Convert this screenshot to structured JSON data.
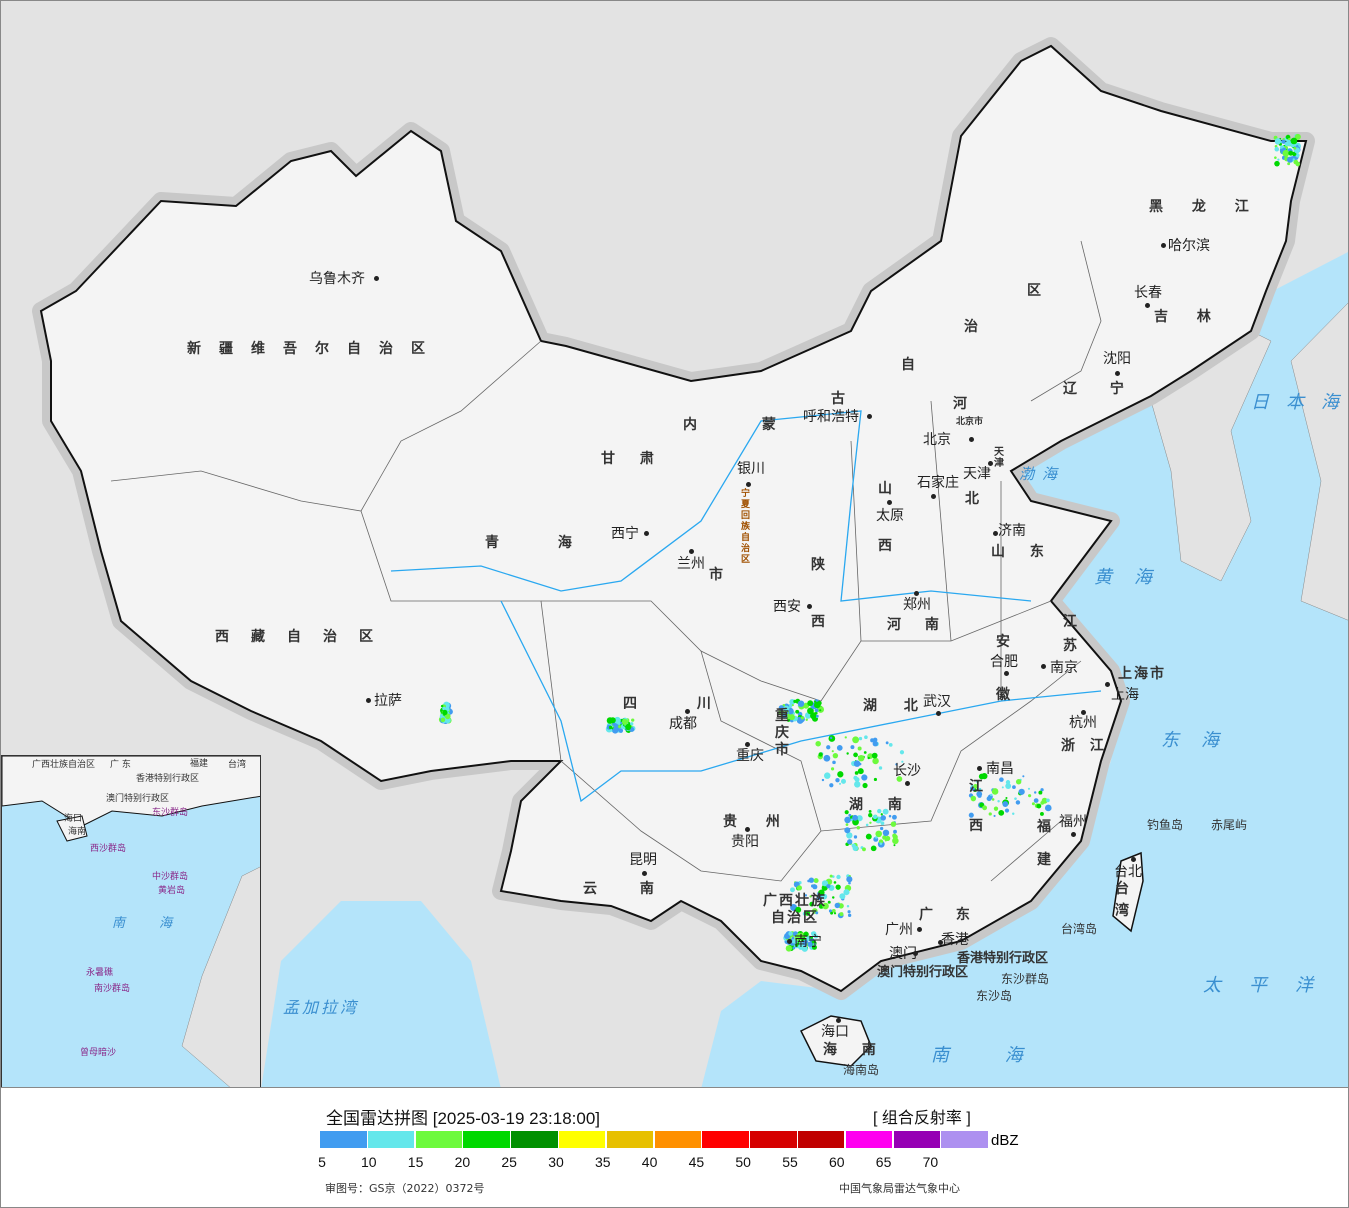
{
  "legend": {
    "title": "全国雷达拼图 [2025-03-19 23:18:00]",
    "product": "[ 组合反射率 ]",
    "unit": "dBZ",
    "colors": [
      "#419cf0",
      "#64e7eb",
      "#6dfa3d",
      "#00d800",
      "#019001",
      "#ffff00",
      "#e7c000",
      "#ff9000",
      "#ff0000",
      "#d60000",
      "#c00000",
      "#ff00f0",
      "#9600b4",
      "#ad90f0"
    ],
    "ticks": [
      "5",
      "10",
      "15",
      "20",
      "25",
      "30",
      "35",
      "40",
      "45",
      "50",
      "55",
      "60",
      "65",
      "70"
    ],
    "approval": "审图号：GS京（2022）0372号",
    "source": "中国气象局雷达气象中心"
  },
  "map": {
    "colors": {
      "land": "#f4f4f4",
      "sea": "#b4e4fa",
      "neighbor": "#e3e3e3",
      "border": "#111111",
      "river": "#2aa8f0"
    },
    "provinces": [
      "新疆维吾尔自治区",
      "西藏自治区",
      "青 海",
      "甘 肃",
      "内 蒙",
      "古",
      "自",
      "治",
      "区",
      "黑 龙 江",
      "吉 林",
      "辽 宁",
      "河",
      "北",
      "山",
      "西",
      "陕",
      "西",
      "宁夏回族自治区",
      "四 川",
      "重庆市",
      "云 南",
      "贵 州",
      "湖 北",
      "湖 南",
      "江",
      "西",
      "安",
      "徽",
      "江",
      "苏",
      "浙 江",
      "福",
      "建",
      "山 东",
      "河 南",
      "广西壮族",
      "自治区",
      "广 东",
      "海 南",
      "台",
      "湾",
      "香港特别行政区",
      "澳门特别行政区",
      "上海市",
      "天津",
      "北京市",
      "市"
    ],
    "cities": [
      "乌鲁木齐",
      "拉萨",
      "西宁",
      "兰州",
      "银川",
      "呼和浩特",
      "北京",
      "天津",
      "石家庄",
      "太原",
      "济南",
      "郑州",
      "西安",
      "成都",
      "重庆",
      "武汉",
      "长沙",
      "南昌",
      "合肥",
      "南京",
      "上海",
      "杭州",
      "福州",
      "台北",
      "贵阳",
      "昆明",
      "南宁",
      "广州",
      "香港",
      "澳门",
      "海口",
      "哈尔滨",
      "长春",
      "沈阳"
    ],
    "seas": [
      "日本海",
      "黄海",
      "东海",
      "太平洋",
      "渤海",
      "南 海",
      "孟加拉湾"
    ],
    "islands": [
      "钓鱼岛",
      "赤尾屿",
      "东沙群岛",
      "东沙岛",
      "海南岛",
      "台湾岛"
    ],
    "inset": [
      "广西壮族自治区",
      "广 东",
      "福建",
      "台湾",
      "香港特别行政区",
      "澳门特别行政区",
      "东沙群岛",
      "海口",
      "海南",
      "西沙群岛",
      "中沙群岛",
      "黄岩岛",
      "南 海",
      "永暑礁",
      "南沙群岛",
      "曾母暗沙"
    ]
  }
}
